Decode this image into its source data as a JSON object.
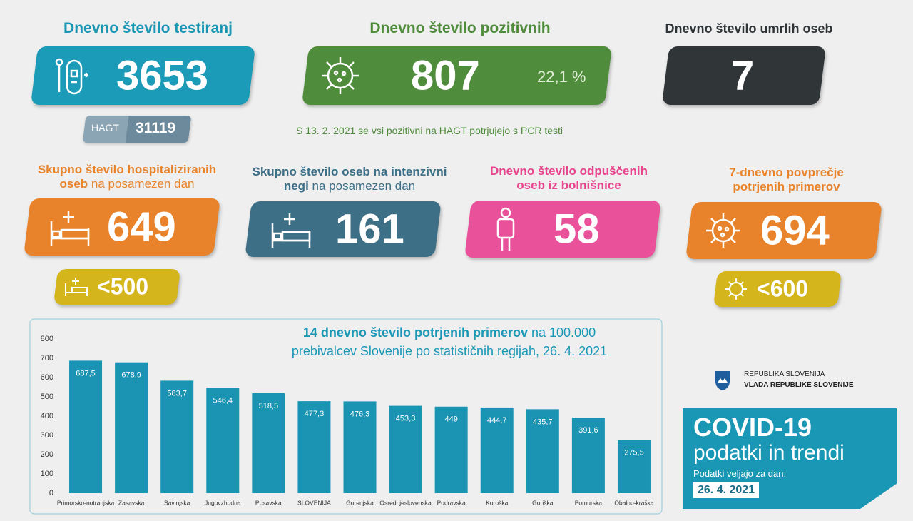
{
  "tests": {
    "title": "Dnevno število testiranj",
    "value": "3653",
    "hagt_label": "HAGT",
    "hagt_value": "31119"
  },
  "positive": {
    "title": "Dnevno število pozitivnih",
    "value": "807",
    "share": "22,1 %",
    "note": "S 13. 2. 2021 se vsi pozitivni na HAGT potrjujejo s PCR testi"
  },
  "deaths": {
    "title": "Dnevno število umrlih oseb",
    "value": "7"
  },
  "hospitalized": {
    "title": "Skupno število hospitaliziranih",
    "title_line2": "oseb",
    "title_rest": "na posamezen dan",
    "value": "649",
    "threshold": "<500"
  },
  "icu": {
    "title": "Skupno število oseb na intenzivni",
    "title_line2": "negi",
    "title_rest": "na posamezen dan",
    "value": "161"
  },
  "discharged": {
    "title": "Dnevno število odpuščenih",
    "title_line2": "oseb iz bolnišnice",
    "value": "58"
  },
  "average": {
    "title": "7-dnevno povprečje",
    "title_line2": "potrjenih primerov",
    "value": "694",
    "threshold": "<600"
  },
  "government": {
    "line1": "REPUBLIKA SLOVENIJA",
    "line2": "VLADA REPUBLIKE SLOVENIJE"
  },
  "covid": {
    "title": "COVID-19",
    "subtitle": "podatki in trendi",
    "label": "Podatki veljajo za dan:",
    "date": "26. 4. 2021"
  },
  "chart_data": {
    "type": "bar",
    "title": "14 dnevno število potrjenih primerov",
    "subtitle": [
      "na 100.000",
      "prebivalcev Slovenije po statističnih regijah, 26. 4. 2021"
    ],
    "categories": [
      "Primorsko-notranjska",
      "Zasavska",
      "Savinjska",
      "Jugovzhodna",
      "Posavska",
      "SLOVENIJA",
      "Gorenjska",
      "Osrednjeslovenska",
      "Podravska",
      "Koroška",
      "Goriška",
      "Pomurska",
      "Obalno-kraška"
    ],
    "values": [
      687.5,
      678.9,
      583.7,
      546.4,
      518.5,
      477.3,
      476.3,
      453.3,
      449,
      444.7,
      435.7,
      391.6,
      275.5
    ],
    "value_labels": [
      "687,5",
      "678,9",
      "583,7",
      "546,4",
      "518,5",
      "477,3",
      "476,3",
      "453,3",
      "449",
      "444,7",
      "435,7",
      "391,6",
      "275,5"
    ],
    "color": "#1b93b3",
    "ylim": [
      0,
      800
    ],
    "yticks": [
      0,
      100,
      200,
      300,
      400,
      500,
      600,
      700,
      800
    ],
    "grid": false
  }
}
